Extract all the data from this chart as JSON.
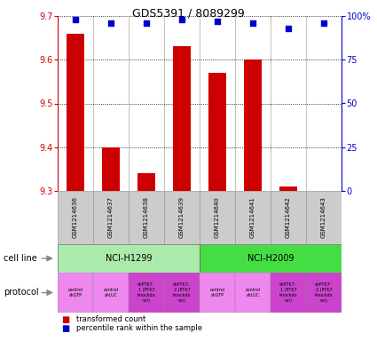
{
  "title": "GDS5391 / 8089299",
  "samples": [
    "GSM1214636",
    "GSM1214637",
    "GSM1214638",
    "GSM1214639",
    "GSM1214640",
    "GSM1214641",
    "GSM1214642",
    "GSM1214643"
  ],
  "transformed_counts": [
    9.66,
    9.4,
    9.34,
    9.63,
    9.57,
    9.6,
    9.31,
    9.3
  ],
  "percentile_ranks": [
    98,
    96,
    96,
    98,
    97,
    96,
    93,
    96
  ],
  "ylim_left": [
    9.3,
    9.7
  ],
  "ylim_right": [
    0,
    100
  ],
  "yticks_left": [
    9.3,
    9.4,
    9.5,
    9.6,
    9.7
  ],
  "yticks_right": [
    0,
    25,
    50,
    75,
    100
  ],
  "bar_color": "#cc0000",
  "dot_color": "#0000cc",
  "bar_bottom": 9.3,
  "cell_line_groups": [
    {
      "label": "NCI-H1299",
      "start": 0,
      "end": 3,
      "color": "#aaeaaa"
    },
    {
      "label": "NCI-H2009",
      "start": 4,
      "end": 7,
      "color": "#44dd44"
    }
  ],
  "protocols": [
    {
      "label": "control\nshGFP",
      "color": "#ee88ee"
    },
    {
      "label": "control\nshLUC",
      "color": "#ee88ee"
    },
    {
      "label": "shPTK7-\n1 (PTK7\nknockdo\nwn)",
      "color": "#cc44cc"
    },
    {
      "label": "shPTK7-\n2 (PTK7\nknockdo\nwn)",
      "color": "#cc44cc"
    },
    {
      "label": "control\nshGFP",
      "color": "#ee88ee"
    },
    {
      "label": "control\nshLUC",
      "color": "#ee88ee"
    },
    {
      "label": "shPTK7-\n1 (PTK7\nknockdo\nwn)",
      "color": "#cc44cc"
    },
    {
      "label": "shPTK7-\n2 (PTK7\nknockdo\nwn)",
      "color": "#cc44cc"
    }
  ],
  "bg_color": "#cccccc",
  "legend_bar_label": "transformed count",
  "legend_dot_label": "percentile rank within the sample",
  "left_labels": [
    "cell line",
    "protocol"
  ],
  "arrow_color": "#888888"
}
